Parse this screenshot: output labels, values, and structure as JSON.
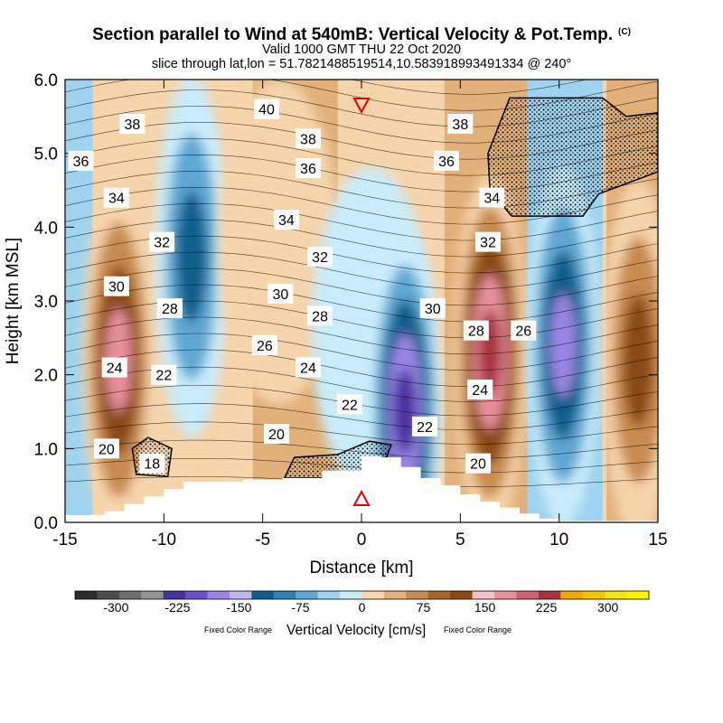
{
  "title": "Section parallel to Wind at 540mB: Vertical Velocity & Pot.Temp.",
  "copyright_mark": "(C)",
  "valid_line": "Valid 1000 GMT THU 22 Oct 2020",
  "slice_line": "slice through lat,lon = 51.7821488519514,10.583918993491334 @ 240°",
  "colorbar": {
    "label": "Vertical Velocity [cm/s]",
    "left_note": "Fixed Color Range",
    "right_note": "Fixed Color Range",
    "tick_labels": [
      "-300",
      "-225",
      "-150",
      "-75",
      "0",
      "75",
      "150",
      "225",
      "300"
    ],
    "tick_values": [
      -300,
      -225,
      -150,
      -75,
      0,
      75,
      150,
      225,
      300
    ],
    "range": [
      -350,
      350
    ],
    "colors": [
      "#2b2b2b",
      "#4d4d4d",
      "#6e6e6e",
      "#929292",
      "#4a2f9e",
      "#6a4fcb",
      "#9a85e6",
      "#c3b4f2",
      "#0f5f8c",
      "#2f82b4",
      "#5fa8d3",
      "#9fd3ef",
      "#c9ecfb",
      "#f6d4ac",
      "#e2b07a",
      "#c98b50",
      "#a86528",
      "#8a4a12",
      "#f6c1c6",
      "#e8909c",
      "#d1606e",
      "#a8323e",
      "#f2a60e",
      "#f4c20d",
      "#f7e01f",
      "#fbf400"
    ]
  },
  "markers": {
    "top_marker": "downward-triangle-icon",
    "bottom_marker": "upward-triangle-icon",
    "marker_x_km": 0
  },
  "chart_data": {
    "type": "heatmap",
    "title": "Section parallel to Wind at 540mB: Vertical Velocity & Pot.Temp.",
    "xlabel": "Distance [km]",
    "ylabel": "Height [km MSL]",
    "xlim": [
      -15,
      15
    ],
    "ylim": [
      0,
      6
    ],
    "x_ticks": [
      -15,
      -10,
      -5,
      0,
      5,
      10,
      15
    ],
    "x_tick_labels": [
      "-15",
      "-10",
      "-5",
      "0",
      "5",
      "10",
      "15"
    ],
    "y_ticks": [
      0,
      1,
      2,
      3,
      4,
      5,
      6
    ],
    "y_tick_labels": [
      "0.0",
      "1.0",
      "2.0",
      "3.0",
      "4.0",
      "5.0",
      "6.0"
    ],
    "shaded_field": "Vertical Velocity [cm/s]",
    "contour_field": "Potential Temperature",
    "velocity_features_cm_s": [
      {
        "x": -12.3,
        "y": 2.2,
        "value": 160
      },
      {
        "x": -8.6,
        "y": 3.6,
        "value": -150
      },
      {
        "x": -4.2,
        "y": 3.8,
        "value": 45
      },
      {
        "x": 0.5,
        "y": 2.6,
        "value": -45
      },
      {
        "x": 2.2,
        "y": 1.5,
        "value": -230
      },
      {
        "x": 6.5,
        "y": 2.3,
        "value": 220
      },
      {
        "x": 10.2,
        "y": 2.4,
        "value": -170
      },
      {
        "x": 14.0,
        "y": 2.2,
        "value": 140
      }
    ],
    "contour_labels": [
      {
        "text": "38",
        "x": -11.6,
        "y": 5.4
      },
      {
        "text": "36",
        "x": -14.2,
        "y": 4.9
      },
      {
        "text": "34",
        "x": -12.4,
        "y": 4.4
      },
      {
        "text": "32",
        "x": -10.1,
        "y": 3.8
      },
      {
        "text": "30",
        "x": -12.4,
        "y": 3.2
      },
      {
        "text": "28",
        "x": -9.7,
        "y": 2.9
      },
      {
        "text": "24",
        "x": -12.5,
        "y": 2.1
      },
      {
        "text": "22",
        "x": -10.0,
        "y": 2.0
      },
      {
        "text": "20",
        "x": -12.9,
        "y": 1.0
      },
      {
        "text": "18",
        "x": -10.6,
        "y": 0.8
      },
      {
        "text": "40",
        "x": -4.8,
        "y": 5.6
      },
      {
        "text": "38",
        "x": -2.7,
        "y": 5.2
      },
      {
        "text": "36",
        "x": -2.7,
        "y": 4.8
      },
      {
        "text": "34",
        "x": -3.8,
        "y": 4.1
      },
      {
        "text": "32",
        "x": -2.1,
        "y": 3.6
      },
      {
        "text": "30",
        "x": -4.1,
        "y": 3.1
      },
      {
        "text": "28",
        "x": -2.1,
        "y": 2.8
      },
      {
        "text": "26",
        "x": -4.9,
        "y": 2.4
      },
      {
        "text": "24",
        "x": -2.7,
        "y": 2.1
      },
      {
        "text": "22",
        "x": -0.6,
        "y": 1.6
      },
      {
        "text": "20",
        "x": -4.3,
        "y": 1.2
      },
      {
        "text": "38",
        "x": 5.0,
        "y": 5.4
      },
      {
        "text": "36",
        "x": 4.3,
        "y": 4.9
      },
      {
        "text": "34",
        "x": 6.6,
        "y": 4.4
      },
      {
        "text": "32",
        "x": 6.4,
        "y": 3.8
      },
      {
        "text": "30",
        "x": 3.6,
        "y": 2.9
      },
      {
        "text": "28",
        "x": 5.8,
        "y": 2.6
      },
      {
        "text": "26",
        "x": 8.2,
        "y": 2.6
      },
      {
        "text": "24",
        "x": 6.0,
        "y": 1.8
      },
      {
        "text": "22",
        "x": 3.2,
        "y": 1.3
      },
      {
        "text": "20",
        "x": 5.9,
        "y": 0.8
      }
    ]
  }
}
